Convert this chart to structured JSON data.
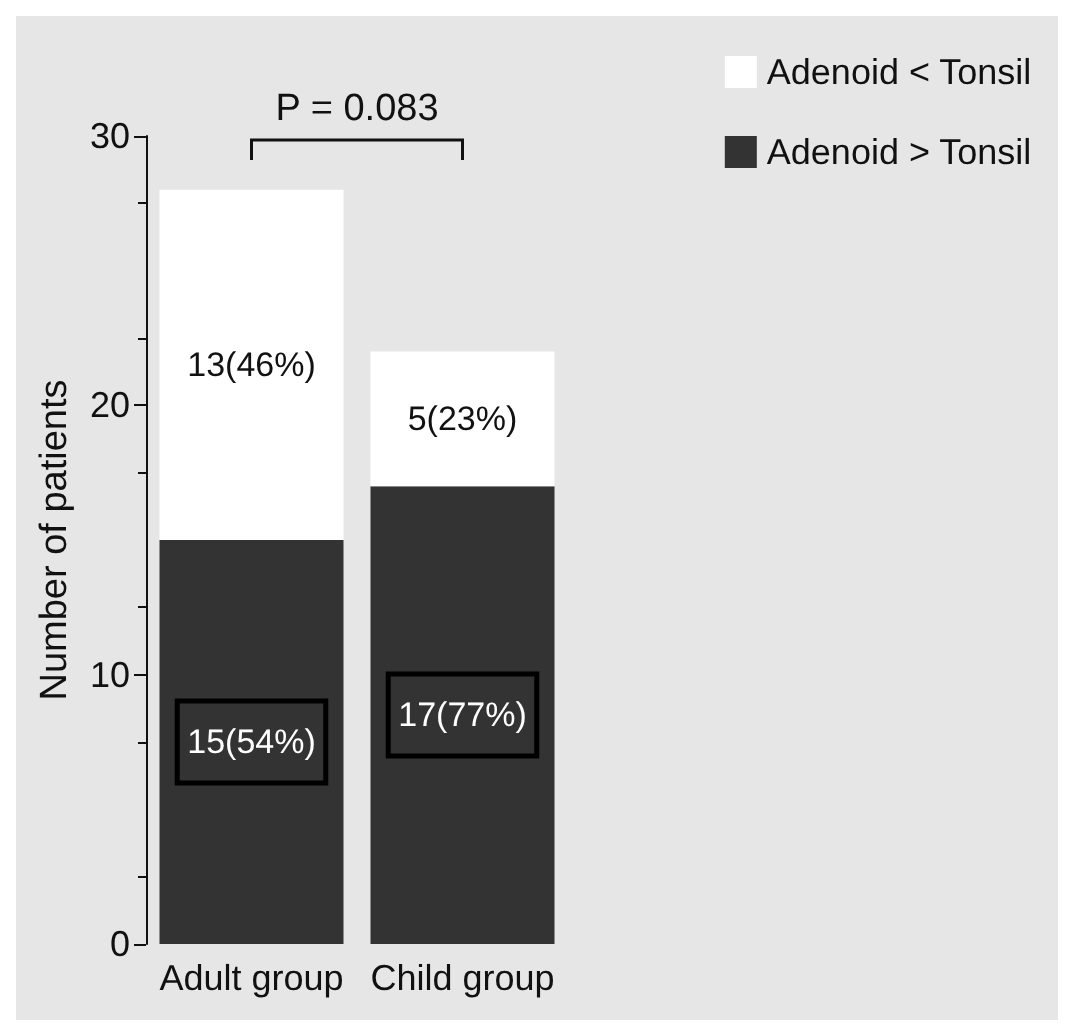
{
  "chart_data": {
    "type": "bar",
    "stacked": true,
    "categories": [
      "Adult group",
      "Child group"
    ],
    "ylabel": "Number of patients",
    "ylim": [
      0,
      30
    ],
    "yticks": [
      0,
      10,
      20,
      30
    ],
    "legend": "top right",
    "grid": false,
    "series": [
      {
        "name": "Adenoid > Tonsil",
        "color": "#333333",
        "values": [
          15,
          17
        ],
        "value_labels": [
          "15(54%)",
          "17(77%)"
        ]
      },
      {
        "name": "Adenoid < Tonsil",
        "color": "#ffffff",
        "values": [
          13,
          5
        ],
        "value_labels": [
          "13(46%)",
          "5(23%)"
        ]
      }
    ],
    "annotations": [
      "P = 0.083"
    ]
  }
}
